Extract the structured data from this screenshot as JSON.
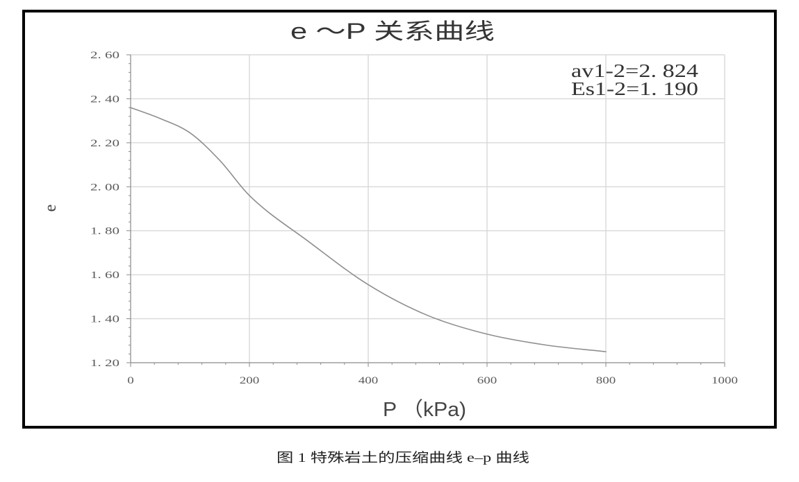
{
  "figure": {
    "caption": "图 1 特殊岩土的压缩曲线 e–p 曲线"
  },
  "chart_data": {
    "type": "line",
    "title": "e ～P 关系曲线",
    "xlabel": "P （kPa)",
    "ylabel": "e",
    "xlim": [
      0,
      1000
    ],
    "ylim": [
      1.2,
      2.6
    ],
    "x_ticks": [
      0,
      200,
      400,
      600,
      800,
      1000
    ],
    "x_tick_labels": [
      "0",
      "200",
      "400",
      "600",
      "800",
      "1000"
    ],
    "x_minor_tick_step": 40,
    "y_ticks": [
      1.2,
      1.4,
      1.6,
      1.8,
      2.0,
      2.2,
      2.4,
      2.6
    ],
    "y_tick_labels": [
      "1. 20",
      "1. 40",
      "1. 60",
      "1. 80",
      "2. 00",
      "2. 20",
      "2. 40",
      "2. 60"
    ],
    "y_minor_tick_step": 0.04,
    "grid": true,
    "annotations": [
      "av1-2=2. 824",
      "Es1-2=1. 190"
    ],
    "series": [
      {
        "x": [
          0,
          50,
          100,
          150,
          200,
          300,
          400,
          500,
          600,
          700,
          800
        ],
        "y": [
          2.36,
          2.31,
          2.245,
          2.12,
          1.96,
          1.75,
          1.555,
          1.415,
          1.33,
          1.28,
          1.25
        ]
      }
    ],
    "colors": {
      "frame": "#000000",
      "grid": "#d8d8d8",
      "axis": "#8a8a8a",
      "curve": "#8e8e8e",
      "tick_text": "#5a5a5a"
    }
  }
}
